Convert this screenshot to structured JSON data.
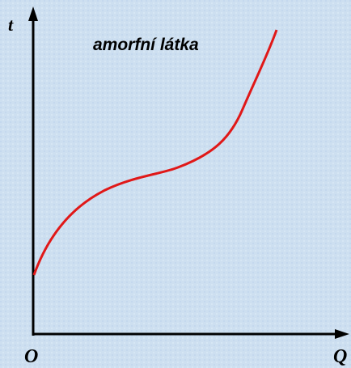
{
  "title": "amorfní látka",
  "axes": {
    "y_label": "t",
    "x_label": "Q",
    "origin": "O"
  }
}
